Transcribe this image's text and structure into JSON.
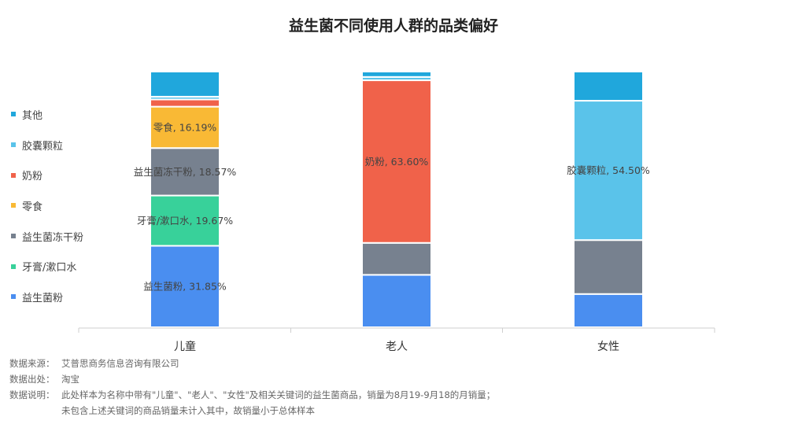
{
  "chart_data": {
    "type": "bar",
    "stacked": true,
    "normalized": true,
    "title": "益生菌不同使用人群的品类偏好",
    "categories": [
      "儿童",
      "老人",
      "女性"
    ],
    "series": [
      {
        "name": "益生菌粉",
        "color": "#4a8ef0",
        "values": [
          31.85,
          20.5,
          13.0
        ]
      },
      {
        "name": "牙膏/漱口水",
        "color": "#38d19a",
        "values": [
          19.67,
          0.0,
          0.0
        ]
      },
      {
        "name": "益生菌冻干粉",
        "color": "#77818f",
        "values": [
          18.57,
          12.5,
          21.1
        ]
      },
      {
        "name": "零食",
        "color": "#f9b935",
        "values": [
          16.19,
          0.0,
          0.0
        ]
      },
      {
        "name": "奶粉",
        "color": "#f0624a",
        "values": [
          2.8,
          63.6,
          0.0
        ]
      },
      {
        "name": "胶囊颗粒",
        "color": "#5ac3ea",
        "values": [
          1.1,
          1.3,
          54.5
        ]
      },
      {
        "name": "其他",
        "color": "#20a7dc",
        "values": [
          9.82,
          2.1,
          11.4
        ]
      }
    ],
    "data_labels": [
      {
        "category_index": 0,
        "series_index": 0,
        "text": "益生菌粉, 31.85%"
      },
      {
        "category_index": 0,
        "series_index": 1,
        "text": "牙膏/漱口水, 19.67%"
      },
      {
        "category_index": 0,
        "series_index": 2,
        "text": "益生菌冻干粉, 18.57%"
      },
      {
        "category_index": 0,
        "series_index": 3,
        "text": "零食, 16.19%"
      },
      {
        "category_index": 1,
        "series_index": 4,
        "text": "奶粉, 63.60%"
      },
      {
        "category_index": 2,
        "series_index": 5,
        "text": "胶囊颗粒, 54.50%"
      }
    ],
    "legend_order": [
      "其他",
      "胶囊颗粒",
      "奶粉",
      "零食",
      "益生菌冻干粉",
      "牙膏/漱口水",
      "益生菌粉"
    ],
    "legend_position": "left",
    "ylim": [
      0,
      100
    ],
    "grid": false
  },
  "notes": [
    {
      "label": "数据来源：",
      "text": "艾普思商务信息咨询有限公司"
    },
    {
      "label": "数据出处：",
      "text": "淘宝"
    },
    {
      "label": "数据说明：",
      "text": "此处样本为名称中带有\"儿童\"、\"老人\"、\"女性\"及相关关键词的益生菌商品，销量为8月19-9月18的月销量；"
    },
    {
      "label": "",
      "text": "未包含上述关键词的商品销量未计入其中，故销量小于总体样本"
    }
  ]
}
